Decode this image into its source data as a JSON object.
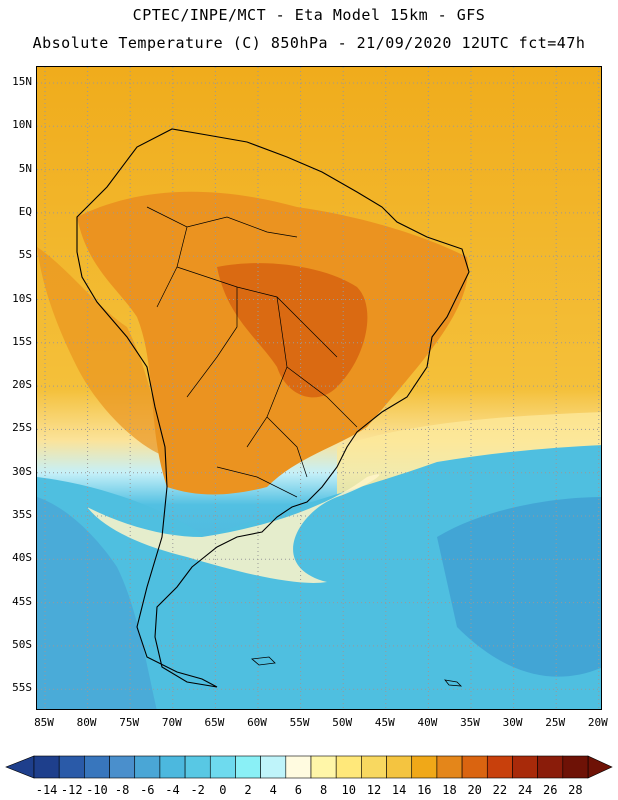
{
  "header": {
    "line1": "CPTEC/INPE/MCT -  Eta Model 15km - GFS",
    "line2": "Absolute Temperature (C) 850hPa - 21/09/2020 12UTC fct=47h"
  },
  "map": {
    "lat_labels": [
      "15N",
      "10N",
      "5N",
      "EQ",
      "5S",
      "10S",
      "15S",
      "20S",
      "25S",
      "30S",
      "35S",
      "40S",
      "45S",
      "50S",
      "55S"
    ],
    "lon_labels": [
      "85W",
      "80W",
      "75W",
      "70W",
      "65W",
      "60W",
      "55W",
      "50W",
      "45W",
      "40W",
      "35W",
      "30W",
      "25W",
      "20W"
    ],
    "colors": {
      "cold_deep": "#4a9fd0",
      "cold": "#52bde0",
      "cool": "#7fdcf0",
      "pale": "#fff6c8",
      "warm": "#f5b020",
      "hot": "#e88918",
      "hottest": "#d85a10",
      "land_outline": "#000000"
    }
  },
  "colorbar": {
    "ticks": [
      "-14",
      "-12",
      "-10",
      "-8",
      "-6",
      "-4",
      "-2",
      "0",
      "2",
      "4",
      "6",
      "8",
      "10",
      "12",
      "14",
      "16",
      "18",
      "20",
      "22",
      "24",
      "26",
      "28"
    ],
    "colors": [
      "#1e3f8c",
      "#2a5aa8",
      "#3876bd",
      "#4a8fcc",
      "#4aa6d6",
      "#4cb8de",
      "#58c8e4",
      "#6edaee",
      "#8af0f6",
      "#bff4fa",
      "#fffbe0",
      "#fff6a8",
      "#ffe87a",
      "#f8d860",
      "#f4c440",
      "#f0a818",
      "#e4861a",
      "#da6410",
      "#c8400c",
      "#a82a0a",
      "#8a1c0a",
      "#6e1206"
    ]
  }
}
